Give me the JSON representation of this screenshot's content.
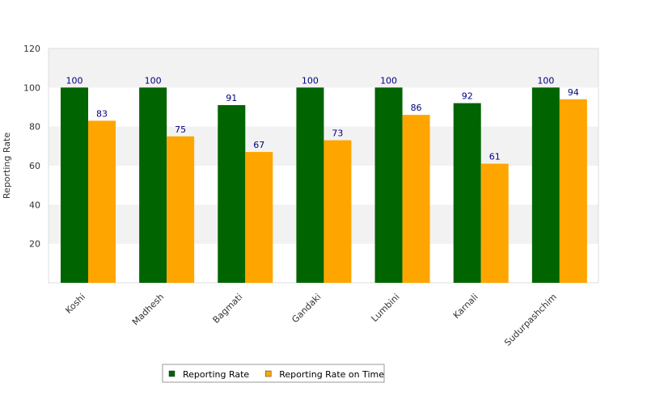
{
  "chart_data": {
    "type": "bar",
    "title": "",
    "xlabel": "",
    "ylabel": "Reporting Rate",
    "ylim": [
      0,
      120
    ],
    "yticks": [
      20,
      40,
      60,
      80,
      100,
      120
    ],
    "categories": [
      "Koshi",
      "Madhesh",
      "Bagmati",
      "Gandaki",
      "Lumbini",
      "Karnali",
      "Sudurpashchim"
    ],
    "series": [
      {
        "name": "Reporting Rate",
        "color": "#006400",
        "values": [
          100,
          100,
          91,
          100,
          100,
          92,
          100
        ]
      },
      {
        "name": "Reporting Rate on Time",
        "color": "#FFA500",
        "values": [
          83,
          75,
          67,
          73,
          86,
          61,
          94
        ]
      }
    ],
    "grid": "horizontal alternating bands",
    "legend": "bottom-center",
    "band_color": "#f2f2f2",
    "label_color": "#000080"
  }
}
